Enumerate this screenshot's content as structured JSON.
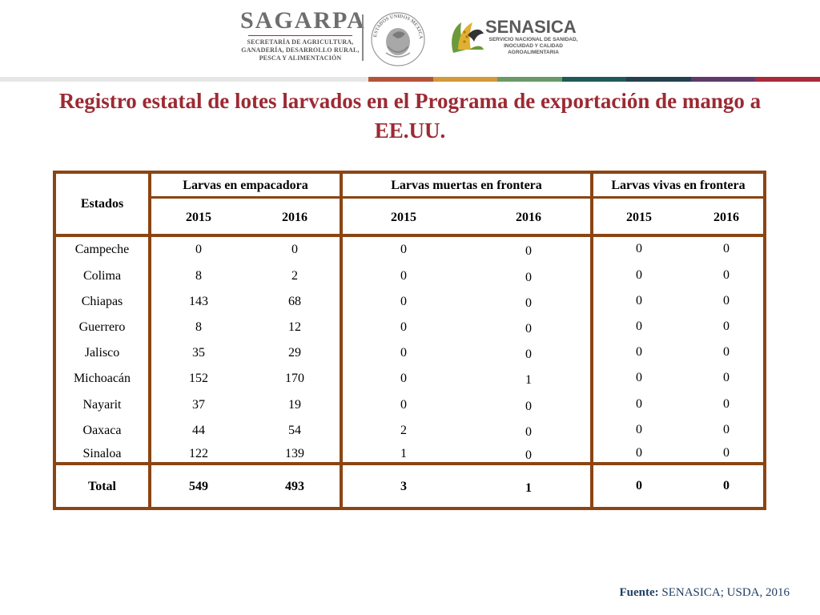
{
  "header": {
    "sagarpa": {
      "name": "SAGARPA",
      "subtitle_lines": [
        "SECRETARÍA DE AGRICULTURA,",
        "GANADERÍA, DESARROLLO RURAL,",
        "PESCA Y ALIMENTACIÓN"
      ]
    },
    "seal": {
      "icon": "mexico-coat-of-arms-icon",
      "ring_text": "ESTADOS UNIDOS MEXICANOS"
    },
    "senasica": {
      "name": "SENASICA",
      "subtitle_lines": [
        "SERVICIO NACIONAL DE SANIDAD,",
        "INOCUIDAD Y CALIDAD",
        "AGROALIMENTARIA"
      ]
    },
    "color_bar": [
      "#b5533a",
      "#d19a3b",
      "#6a9a6a",
      "#1f5a58",
      "#24404e",
      "#5f3a6b",
      "#a92b39"
    ]
  },
  "title": "Registro estatal de lotes larvados en el Programa de exportación de mango a EE.UU.",
  "table": {
    "state_header": "Estados",
    "groups": [
      {
        "label": "Larvas en empacadora",
        "years": [
          "2015",
          "2016"
        ]
      },
      {
        "label": "Larvas muertas en frontera",
        "years": [
          "2015",
          "2016"
        ]
      },
      {
        "label": "Larvas vivas en frontera",
        "years": [
          "2015",
          "2016"
        ]
      }
    ],
    "rows": [
      {
        "state": "Campeche",
        "values": [
          "0",
          "0",
          "0",
          "0",
          "0",
          "0"
        ]
      },
      {
        "state": "Colima",
        "values": [
          "8",
          "2",
          "0",
          "0",
          "0",
          "0"
        ]
      },
      {
        "state": "Chiapas",
        "values": [
          "143",
          "68",
          "0",
          "0",
          "0",
          "0"
        ]
      },
      {
        "state": "Guerrero",
        "values": [
          "8",
          "12",
          "0",
          "0",
          "0",
          "0"
        ]
      },
      {
        "state": "Jalisco",
        "values": [
          "35",
          "29",
          "0",
          "0",
          "0",
          "0"
        ]
      },
      {
        "state": "Michoacán",
        "values": [
          "152",
          "170",
          "0",
          "1",
          "0",
          "0"
        ]
      },
      {
        "state": "Nayarit",
        "values": [
          "37",
          "19",
          "0",
          "0",
          "0",
          "0"
        ]
      },
      {
        "state": "Oaxaca",
        "values": [
          "44",
          "54",
          "2",
          "0",
          "0",
          "0"
        ]
      },
      {
        "state": "Sinaloa",
        "values": [
          "122",
          "139",
          "1",
          "0",
          "0",
          "0"
        ]
      }
    ],
    "total": {
      "label": "Total",
      "values": [
        "549",
        "493",
        "3",
        "1",
        "0",
        "0"
      ]
    },
    "border_color": "#8b4513"
  },
  "source": {
    "label": "Fuente:",
    "text": "SENASICA; USDA, 2016"
  }
}
